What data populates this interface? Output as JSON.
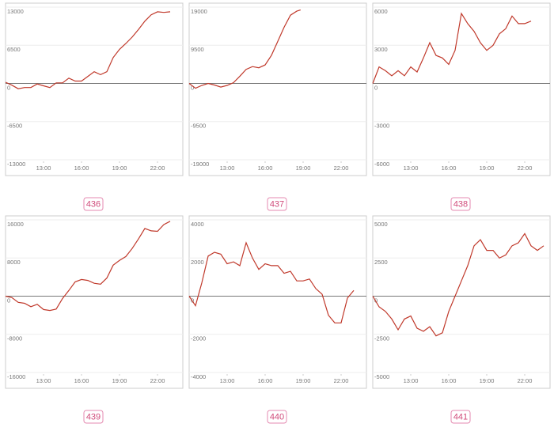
{
  "chart_data": [
    {
      "type": "line",
      "label": "436",
      "color": "#c0392b",
      "xlim": [
        10,
        24
      ],
      "ylim": [
        -13000,
        13000
      ],
      "yticks": [
        -13000,
        -6500,
        0,
        6500,
        13000
      ],
      "xticks": [
        {
          "value": 13,
          "label": "13:00"
        },
        {
          "value": 16,
          "label": "16:00"
        },
        {
          "value": 19,
          "label": "19:00"
        },
        {
          "value": 22,
          "label": "22:00"
        }
      ],
      "x": [
        10,
        10.5,
        11,
        11.5,
        12,
        12.5,
        13,
        13.5,
        14,
        14.5,
        15,
        15.5,
        16,
        16.5,
        17,
        17.5,
        18,
        18.5,
        19,
        19.5,
        20,
        20.5,
        21,
        21.5,
        22,
        22.5,
        23
      ],
      "values": [
        200,
        -300,
        -900,
        -700,
        -700,
        -100,
        -400,
        -700,
        100,
        100,
        900,
        400,
        400,
        1200,
        2000,
        1500,
        2000,
        4400,
        5800,
        6800,
        7900,
        9200,
        10600,
        11700,
        12200,
        12100,
        12200
      ]
    },
    {
      "type": "line",
      "label": "437",
      "color": "#c0392b",
      "xlim": [
        10,
        24
      ],
      "ylim": [
        -19000,
        19000
      ],
      "yticks": [
        -19000,
        -9500,
        0,
        9500,
        19000
      ],
      "xticks": [
        {
          "value": 13,
          "label": "13:00"
        },
        {
          "value": 16,
          "label": "16:00"
        },
        {
          "value": 19,
          "label": "19:00"
        },
        {
          "value": 22,
          "label": "22:00"
        }
      ],
      "x": [
        10,
        10.5,
        11,
        11.5,
        12,
        12.5,
        13,
        13.5,
        14,
        14.5,
        15,
        15.5,
        16,
        16.5,
        17,
        17.5,
        18,
        18.5,
        18.8
      ],
      "values": [
        0,
        -1200,
        -500,
        0,
        -400,
        -900,
        -500,
        200,
        1800,
        3500,
        4200,
        3900,
        4600,
        7000,
        10500,
        14000,
        17000,
        18000,
        18300
      ]
    },
    {
      "type": "line",
      "label": "438",
      "color": "#c0392b",
      "xlim": [
        10,
        24
      ],
      "ylim": [
        -6000,
        6000
      ],
      "yticks": [
        -6000,
        -3000,
        0,
        3000,
        6000
      ],
      "xticks": [
        {
          "value": 13,
          "label": "13:00"
        },
        {
          "value": 16,
          "label": "16:00"
        },
        {
          "value": 19,
          "label": "19:00"
        },
        {
          "value": 22,
          "label": "22:00"
        }
      ],
      "x": [
        10,
        10.5,
        11,
        11.5,
        12,
        12.5,
        13,
        13.5,
        14,
        14.5,
        15,
        15.5,
        16,
        16.5,
        17,
        17.5,
        18,
        18.5,
        19,
        19.5,
        20,
        20.5,
        21,
        21.5,
        22,
        22.5
      ],
      "values": [
        0,
        1300,
        1000,
        600,
        1000,
        600,
        1300,
        900,
        2000,
        3200,
        2200,
        2000,
        1500,
        2600,
        5500,
        4700,
        4100,
        3200,
        2600,
        3000,
        3900,
        4300,
        5300,
        4700,
        4700,
        4900
      ]
    },
    {
      "type": "line",
      "label": "439",
      "color": "#c0392b",
      "xlim": [
        10,
        24
      ],
      "ylim": [
        -16000,
        16000
      ],
      "yticks": [
        -16000,
        -8000,
        0,
        8000,
        16000
      ],
      "xticks": [
        {
          "value": 13,
          "label": "13:00"
        },
        {
          "value": 16,
          "label": "16:00"
        },
        {
          "value": 19,
          "label": "19:00"
        },
        {
          "value": 22,
          "label": "22:00"
        }
      ],
      "x": [
        10,
        10.5,
        11,
        11.5,
        12,
        12.5,
        13,
        13.5,
        14,
        14.5,
        15,
        15.5,
        16,
        16.5,
        17,
        17.5,
        18,
        18.5,
        19,
        19.5,
        20,
        20.5,
        21,
        21.5,
        22,
        22.5,
        23
      ],
      "values": [
        0,
        -300,
        -1300,
        -1500,
        -2200,
        -1700,
        -2800,
        -3000,
        -2700,
        -500,
        1200,
        3000,
        3500,
        3300,
        2700,
        2500,
        3800,
        6500,
        7500,
        8300,
        10000,
        12000,
        14200,
        13700,
        13600,
        15000,
        15700
      ]
    },
    {
      "type": "line",
      "label": "440",
      "color": "#c0392b",
      "xlim": [
        10,
        24
      ],
      "ylim": [
        -4000,
        4000
      ],
      "yticks": [
        -4000,
        -2000,
        0,
        2000,
        4000
      ],
      "xticks": [
        {
          "value": 13,
          "label": "13:00"
        },
        {
          "value": 16,
          "label": "16:00"
        },
        {
          "value": 19,
          "label": "19:00"
        },
        {
          "value": 22,
          "label": "22:00"
        }
      ],
      "x": [
        10,
        10.5,
        11,
        11.5,
        12,
        12.5,
        13,
        13.5,
        14,
        14.5,
        15,
        15.5,
        16,
        16.5,
        17,
        17.5,
        18,
        18.5,
        19,
        19.5,
        20,
        20.5,
        21,
        21.5,
        22,
        22.5,
        23
      ],
      "values": [
        0,
        -500,
        700,
        2100,
        2300,
        2200,
        1700,
        1800,
        1600,
        2800,
        2000,
        1400,
        1700,
        1600,
        1600,
        1200,
        1300,
        800,
        800,
        900,
        400,
        100,
        -1000,
        -1400,
        -1400,
        -100,
        300
      ]
    },
    {
      "type": "line",
      "label": "441",
      "color": "#c0392b",
      "xlim": [
        10,
        24
      ],
      "ylim": [
        -5000,
        5000
      ],
      "yticks": [
        -5000,
        -2500,
        0,
        2500,
        5000
      ],
      "xticks": [
        {
          "value": 13,
          "label": "13:00"
        },
        {
          "value": 16,
          "label": "16:00"
        },
        {
          "value": 19,
          "label": "19:00"
        },
        {
          "value": 22,
          "label": "22:00"
        }
      ],
      "x": [
        10,
        10.5,
        11,
        11.5,
        12,
        12.5,
        13,
        13.5,
        14,
        14.5,
        15,
        15.5,
        16,
        16.5,
        17,
        17.5,
        18,
        18.5,
        19,
        19.5,
        20,
        20.5,
        21,
        21.5,
        22,
        22.5,
        23,
        23.5
      ],
      "values": [
        0,
        -700,
        -1000,
        -1500,
        -2200,
        -1500,
        -1300,
        -2100,
        -2300,
        -2000,
        -2600,
        -2400,
        -1000,
        0,
        1000,
        2000,
        3300,
        3700,
        3000,
        3000,
        2500,
        2700,
        3300,
        3500,
        4100,
        3300,
        3000,
        3300
      ]
    }
  ]
}
